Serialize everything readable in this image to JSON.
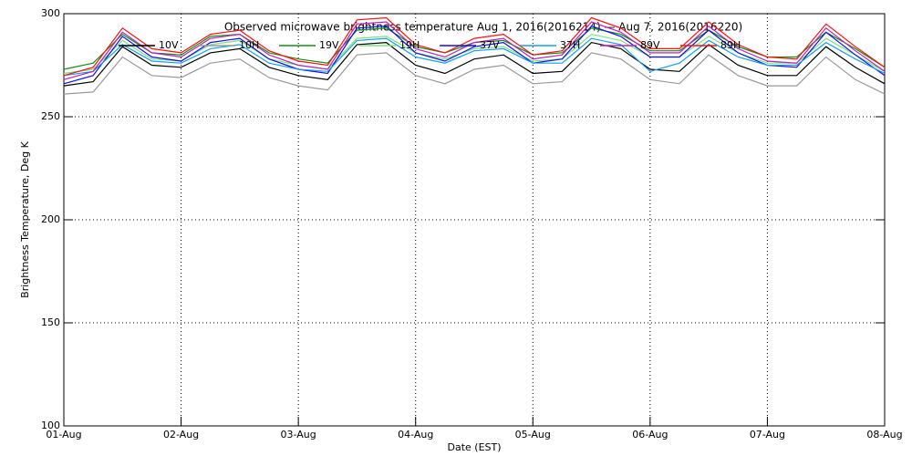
{
  "chart_data": {
    "type": "line",
    "title": "Observed microwave brightness temperature Aug  1, 2016(2016214) — Aug  7, 2016(2016220)",
    "x_label": "Date (EST)",
    "y_label": "Brightness Temperature, Deg K",
    "x": [
      1,
      1.25,
      1.5,
      1.75,
      2,
      2.25,
      2.5,
      2.75,
      3,
      3.25,
      3.5,
      3.75,
      4,
      4.25,
      4.5,
      4.75,
      5,
      5.25,
      5.5,
      5.75,
      6,
      6.25,
      6.5,
      6.75,
      7,
      7.25,
      7.5,
      7.75,
      8
    ],
    "xlim": [
      1,
      8
    ],
    "xticks": [
      {
        "value": 1,
        "label": "01-Aug"
      },
      {
        "value": 2,
        "label": "02-Aug"
      },
      {
        "value": 3,
        "label": "03-Aug"
      },
      {
        "value": 4,
        "label": "04-Aug"
      },
      {
        "value": 5,
        "label": "05-Aug"
      },
      {
        "value": 6,
        "label": "06-Aug"
      },
      {
        "value": 7,
        "label": "07-Aug"
      },
      {
        "value": 8,
        "label": "08-Aug"
      }
    ],
    "ylim": [
      100,
      300
    ],
    "yticks": [
      100,
      150,
      200,
      250,
      300
    ],
    "grid": true,
    "series": [
      {
        "name": "10V",
        "color": "#000000",
        "values": [
          265,
          267,
          284,
          275,
          274,
          281,
          283,
          274,
          270,
          268,
          285,
          286,
          275,
          271,
          278,
          280,
          271,
          272,
          286,
          283,
          273,
          272,
          285,
          275,
          270,
          270,
          284,
          274,
          266
        ]
      },
      {
        "name": "10H",
        "color": "#999999",
        "values": [
          261,
          262,
          279,
          270,
          269,
          276,
          278,
          269,
          265,
          263,
          280,
          281,
          270,
          266,
          273,
          275,
          266,
          267,
          281,
          278,
          268,
          266,
          280,
          270,
          265,
          265,
          279,
          268,
          261
        ]
      },
      {
        "name": "19V",
        "color": "#109010",
        "values": [
          273,
          276,
          290,
          281,
          280,
          289,
          290,
          281,
          278,
          276,
          292,
          293,
          284,
          281,
          286,
          287,
          280,
          281,
          293,
          290,
          282,
          282,
          292,
          284,
          279,
          279,
          291,
          283,
          274
        ]
      },
      {
        "name": "19H",
        "color": "#7ee07e",
        "values": [
          271,
          273,
          287,
          278,
          277,
          285,
          287,
          278,
          275,
          273,
          288,
          289,
          281,
          278,
          283,
          284,
          277,
          278,
          290,
          287,
          279,
          279,
          289,
          281,
          276,
          276,
          288,
          280,
          272
        ]
      },
      {
        "name": "37V",
        "color": "#1010e0",
        "values": [
          266,
          270,
          289,
          279,
          277,
          286,
          288,
          278,
          273,
          271,
          293,
          294,
          281,
          277,
          284,
          286,
          276,
          278,
          294,
          289,
          279,
          279,
          292,
          281,
          275,
          274,
          291,
          280,
          270
        ]
      },
      {
        "name": "37H",
        "color": "#10a0f0",
        "values": [
          270,
          272,
          285,
          277,
          276,
          283,
          285,
          276,
          273,
          272,
          287,
          288,
          279,
          276,
          282,
          283,
          276,
          276,
          288,
          285,
          272,
          276,
          287,
          279,
          275,
          275,
          286,
          278,
          271
        ]
      },
      {
        "name": "89V",
        "color": "#c020c0",
        "values": [
          268,
          272,
          291,
          281,
          279,
          288,
          290,
          280,
          275,
          273,
          295,
          296,
          283,
          279,
          286,
          288,
          278,
          280,
          296,
          291,
          281,
          281,
          294,
          283,
          277,
          276,
          293,
          282,
          272
        ]
      },
      {
        "name": "89H",
        "color": "#ff1010",
        "values": [
          270,
          274,
          293,
          283,
          281,
          290,
          292,
          282,
          277,
          275,
          297,
          298,
          285,
          281,
          288,
          290,
          280,
          282,
          298,
          293,
          283,
          283,
          296,
          285,
          279,
          278,
          295,
          284,
          274
        ]
      }
    ]
  }
}
